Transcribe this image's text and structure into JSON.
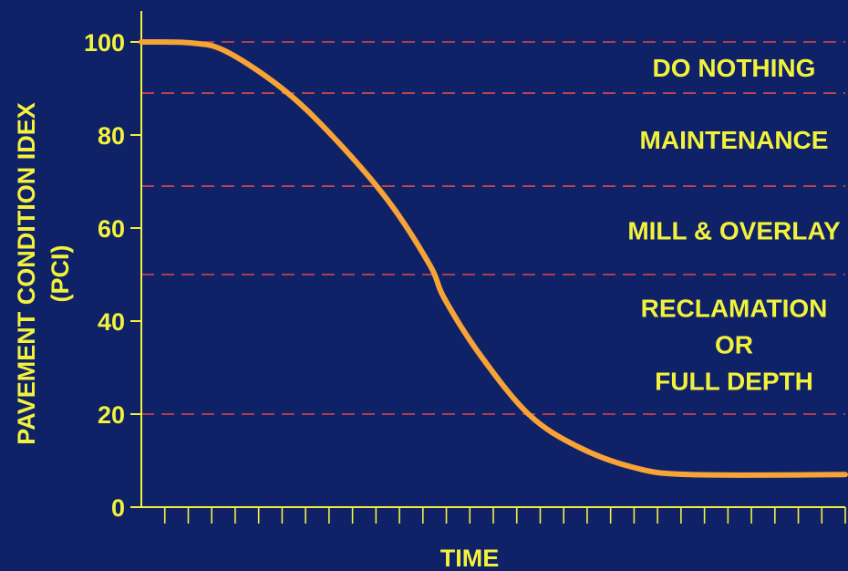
{
  "chart_data": {
    "type": "line",
    "xlabel": "TIME",
    "ylabel": "PAVEMENT CONDITION IDEX",
    "ylabel_line2": "(PCI)",
    "ylim": [
      0,
      100
    ],
    "yticks": [
      "0",
      "20",
      "40",
      "60",
      "80",
      "100"
    ],
    "xticks_labeled": false,
    "thresholds": [
      100,
      89,
      69,
      50,
      20
    ],
    "bands": [
      {
        "label": "DO NOTHING",
        "from": 89,
        "to": 100
      },
      {
        "label": "MAINTENANCE",
        "from": 69,
        "to": 89
      },
      {
        "label": "MILL & OVERLAY",
        "from": 50,
        "to": 69
      },
      {
        "label_lines": [
          "RECLAMATION",
          "OR",
          "FULL DEPTH"
        ],
        "from": 20,
        "to": 50
      }
    ],
    "series": [
      {
        "x": [
          0,
          0.07,
          0.12,
          0.2,
          0.27,
          0.35,
          0.41,
          0.43,
          0.48,
          0.55,
          0.62,
          0.7,
          0.78,
          1.0
        ],
        "y": [
          100,
          99.8,
          98,
          90,
          80,
          66,
          52,
          45,
          33,
          20,
          13,
          8.5,
          7,
          7
        ]
      }
    ],
    "colors": {
      "background": "#0f2167",
      "text": "#f2f23c",
      "line": "#f7a335",
      "threshold": "#e04848"
    }
  }
}
